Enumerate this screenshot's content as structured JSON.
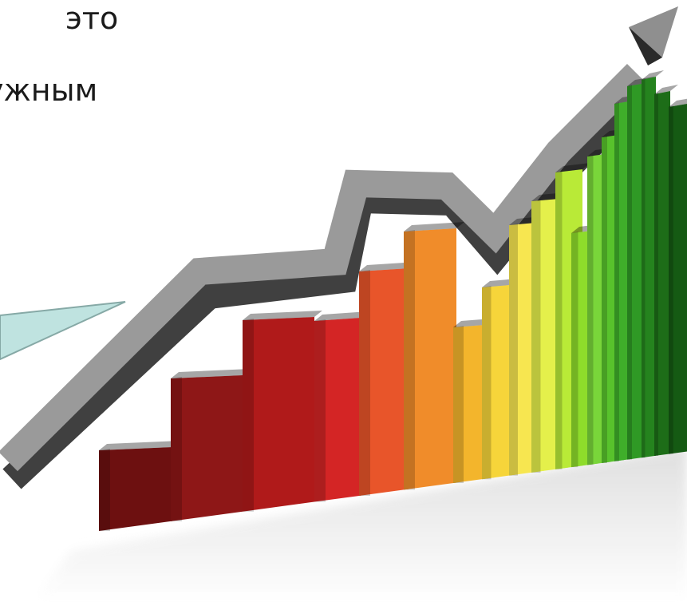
{
  "slide": {
    "text_lines": [
      "это",
      "ужным"
    ]
  },
  "illustration": {
    "icon": "growth-bar-chart-with-rising-arrow-icon",
    "bar_count": 19,
    "arrow_color": "#9a9a9a",
    "speech_bubble_color": "#bfe3e0",
    "bar_colors": [
      "#6d1010",
      "#8e1717",
      "#b01a1a",
      "#d42525",
      "#e8552a",
      "#f08c2a",
      "#f3b52c",
      "#f6d53a",
      "#f7e650",
      "#e4f04b",
      "#b9ea37",
      "#8edc2b",
      "#79d53a",
      "#58c22c",
      "#3fae2a",
      "#2f9925",
      "#25831e",
      "#1d6d18",
      "#155a13"
    ]
  }
}
